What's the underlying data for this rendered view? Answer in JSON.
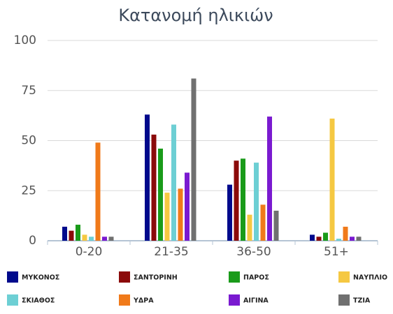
{
  "chart_data": {
    "type": "bar",
    "title": "Κατανομή ηλικιών",
    "categories": [
      "0-20",
      "21-35",
      "36-50",
      "51+"
    ],
    "series": [
      {
        "name": "ΜΥΚΟΝΟΣ",
        "color": "#000a8c",
        "values": [
          7,
          63,
          28,
          3
        ]
      },
      {
        "name": "ΣΑΝΤΟΡΙΝΗ",
        "color": "#8b0a0a",
        "values": [
          5,
          53,
          40,
          2
        ]
      },
      {
        "name": "ΠΑΡΟΣ",
        "color": "#1a9b1a",
        "values": [
          8,
          46,
          41,
          4
        ]
      },
      {
        "name": "ΝΑΥΠΛΙΟ",
        "color": "#f5c842",
        "values": [
          3,
          24,
          13,
          61
        ]
      },
      {
        "name": "ΣΚΙΑΘΟΣ",
        "color": "#6dcfd4",
        "values": [
          2,
          58,
          39,
          1
        ]
      },
      {
        "name": "ΥΔΡΑ",
        "color": "#f07a1a",
        "values": [
          49,
          26,
          18,
          7
        ]
      },
      {
        "name": "ΑΙΓΙΝΑ",
        "color": "#7a1ad0",
        "values": [
          2,
          34,
          62,
          2
        ]
      },
      {
        "name": "ΤΖΙΑ",
        "color": "#707070",
        "values": [
          2,
          81,
          15,
          2
        ]
      }
    ],
    "ylim": [
      0,
      100
    ],
    "yticks": [
      0,
      25,
      50,
      75,
      100
    ],
    "grid": true,
    "legend": "bottom"
  }
}
